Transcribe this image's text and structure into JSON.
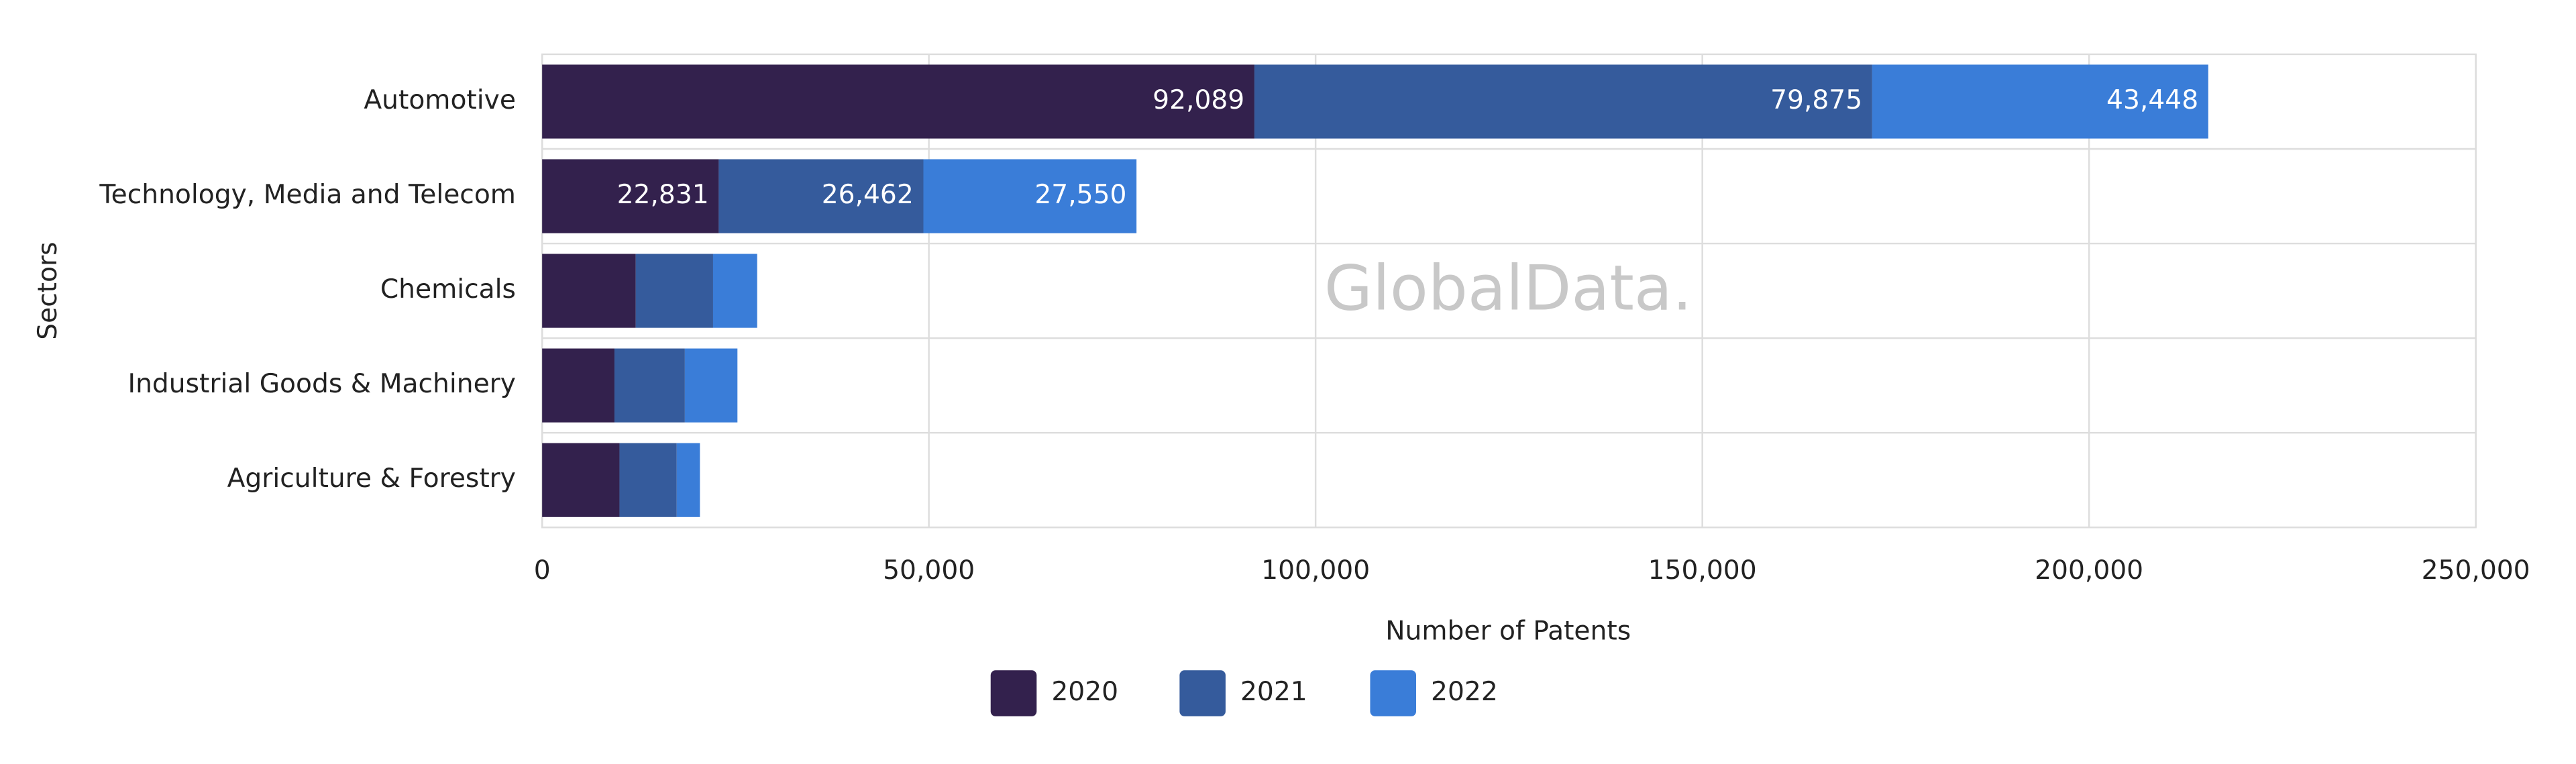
{
  "chart_data": {
    "type": "stacked-bar-horizontal",
    "x_label": "Number of Patents",
    "y_label": "Sectors",
    "watermark": "GlobalData.",
    "categories": [
      "Automotive",
      "Technology, Media and Telecom",
      "Chemicals",
      "Industrial Goods & Machinery",
      "Agriculture & Forestry"
    ],
    "series": [
      {
        "name": "2020",
        "color": "#33214d",
        "values": [
          92089,
          22831,
          12100,
          9350,
          10000
        ],
        "value_labels": [
          "92,089",
          "22,831",
          null,
          null,
          null
        ]
      },
      {
        "name": "2021",
        "color": "#355b9c",
        "values": [
          79875,
          26462,
          10000,
          9100,
          7400
        ],
        "value_labels": [
          "79,875",
          "26,462",
          null,
          null,
          null
        ]
      },
      {
        "name": "2022",
        "color": "#3a7dd8",
        "values": [
          43448,
          27550,
          5700,
          6800,
          3000
        ],
        "value_labels": [
          "43,448",
          "27,550",
          null,
          null,
          null
        ]
      }
    ],
    "xlim": [
      0,
      250000
    ],
    "xticks": [
      0,
      {
        "value": 50000,
        "label": "50,000"
      },
      {
        "value": 100000,
        "label": "100,000"
      },
      {
        "value": 150000,
        "label": "150,000"
      },
      {
        "value": 200000,
        "label": "200,000"
      },
      {
        "value": 250000,
        "label": "250,000"
      }
    ],
    "grid": true
  }
}
